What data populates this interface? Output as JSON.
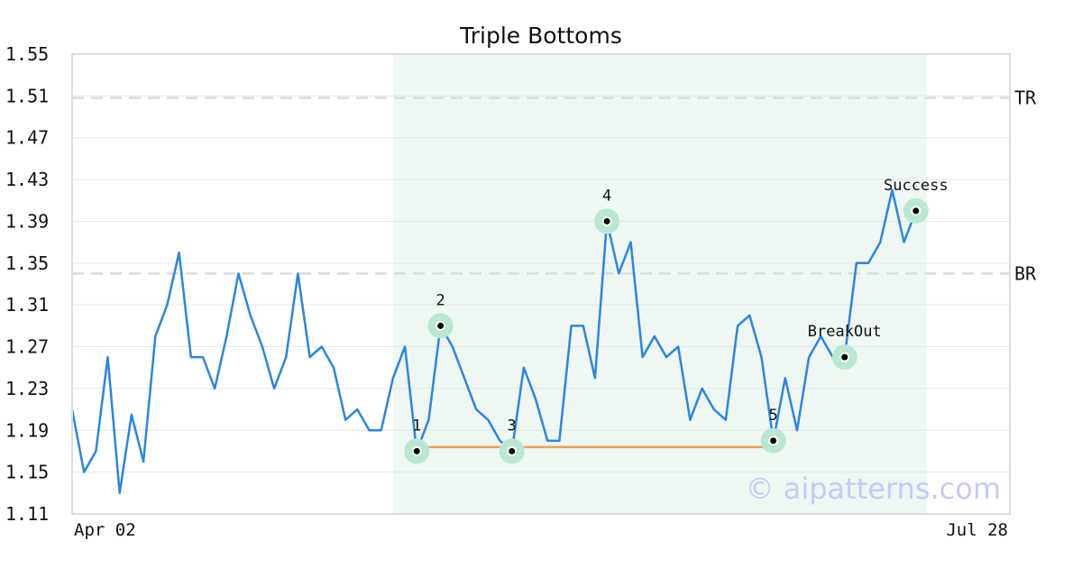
{
  "chart_data": {
    "type": "line",
    "title": "Triple Bottoms",
    "xlabel": "",
    "ylabel": "",
    "ylim": [
      1.11,
      1.55
    ],
    "y_ticks": [
      "1.55",
      "1.51",
      "1.47",
      "1.43",
      "1.39",
      "1.35",
      "1.31",
      "1.27",
      "1.23",
      "1.19",
      "1.15",
      "1.11"
    ],
    "x_ticks": [
      {
        "index": 0,
        "label": "Apr 02"
      },
      {
        "index": 72,
        "label": "Jul 28"
      }
    ],
    "grid": true,
    "watermark": "© aipatterns.com",
    "series": [
      {
        "color": "#2a86e0",
        "values": [
          1.21,
          1.15,
          1.17,
          1.26,
          1.13,
          1.205,
          1.16,
          1.28,
          1.31,
          1.36,
          1.26,
          1.26,
          1.23,
          1.28,
          1.34,
          1.3,
          1.27,
          1.23,
          1.26,
          1.34,
          1.26,
          1.27,
          1.25,
          1.2,
          1.21,
          1.19,
          1.19,
          1.24,
          1.27,
          1.17,
          1.2,
          1.29,
          1.27,
          1.24,
          1.21,
          1.2,
          1.18,
          1.17,
          1.25,
          1.22,
          1.18,
          1.18,
          1.29,
          1.29,
          1.24,
          1.39,
          1.34,
          1.37,
          1.26,
          1.28,
          1.26,
          1.27,
          1.2,
          1.23,
          1.21,
          1.2,
          1.29,
          1.3,
          1.26,
          1.18,
          1.24,
          1.19,
          1.26,
          1.28,
          1.26,
          1.26,
          1.35,
          1.35,
          1.37,
          1.42,
          1.37,
          1.4,
          1.4
        ]
      }
    ],
    "pattern_region": {
      "start_index": 27,
      "end_index": 73,
      "color": "#eff7f3"
    },
    "support_line": {
      "start_index": 29,
      "end_index": 59,
      "value": 1.174,
      "color": "#f0a050"
    },
    "reference_lines": [
      {
        "label": "TR",
        "value": 1.508
      },
      {
        "label": "BR",
        "value": 1.34
      }
    ],
    "points": [
      {
        "label": "1",
        "index": 29,
        "value": 1.17
      },
      {
        "label": "2",
        "index": 31,
        "value": 1.29
      },
      {
        "label": "3",
        "index": 37,
        "value": 1.17
      },
      {
        "label": "4",
        "index": 45,
        "value": 1.39
      },
      {
        "label": "5",
        "index": 59,
        "value": 1.18
      },
      {
        "label": "BreakOut",
        "index": 65,
        "value": 1.26
      },
      {
        "label": "Success",
        "index": 71,
        "value": 1.4
      }
    ]
  }
}
